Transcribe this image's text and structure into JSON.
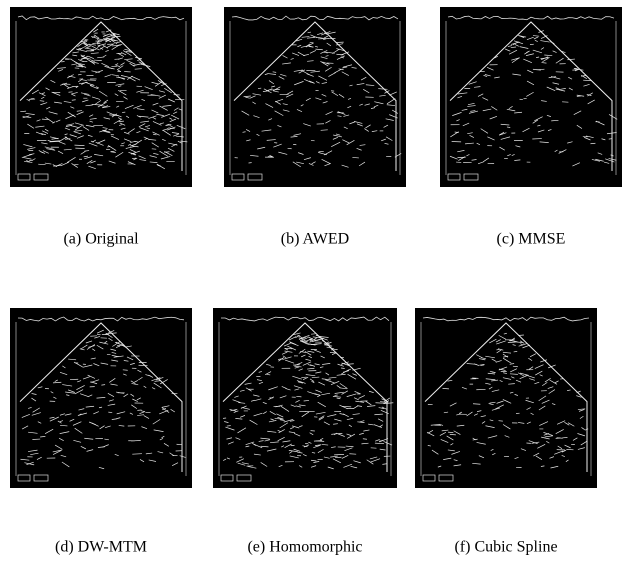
{
  "figures": [
    {
      "caption": "(a) Original"
    },
    {
      "caption": "(b) AWED"
    },
    {
      "caption": "(c) MMSE"
    },
    {
      "caption": "(d) DW-MTM"
    },
    {
      "caption": "(e) Homomorphic"
    },
    {
      "caption": "(f) Cubic Spline"
    }
  ]
}
